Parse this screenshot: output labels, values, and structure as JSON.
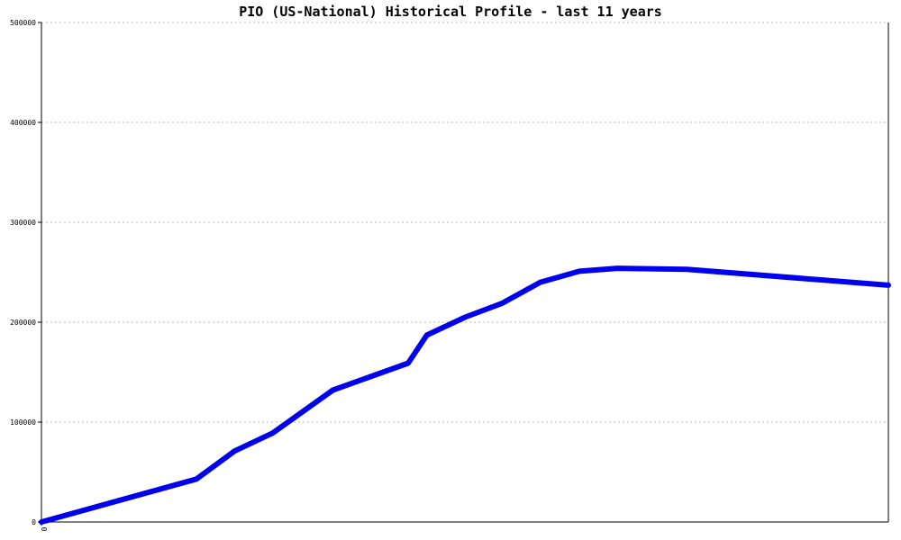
{
  "chart_data": {
    "type": "line",
    "title": "PIO (US-National) Historical Profile - last 11 years",
    "xlabel": "",
    "ylabel": "",
    "x_tick_labels": [
      "0"
    ],
    "ylim": [
      0,
      500000
    ],
    "y_ticks": [
      0,
      100000,
      200000,
      300000,
      400000,
      500000
    ],
    "y_tick_labels": [
      "0",
      "100000",
      "200000",
      "300000",
      "400000",
      "500000"
    ],
    "grid": true,
    "legend": "none",
    "series": [
      {
        "color": "#0000ee",
        "x": [
          0,
          0.183,
          0.228,
          0.273,
          0.344,
          0.433,
          0.455,
          0.5,
          0.544,
          0.589,
          0.635,
          0.68,
          0.762,
          1.0
        ],
        "y": [
          0,
          43000,
          71000,
          89000,
          132000,
          159000,
          187000,
          205000,
          219000,
          240000,
          251000,
          254000,
          253000,
          237000
        ]
      }
    ]
  }
}
